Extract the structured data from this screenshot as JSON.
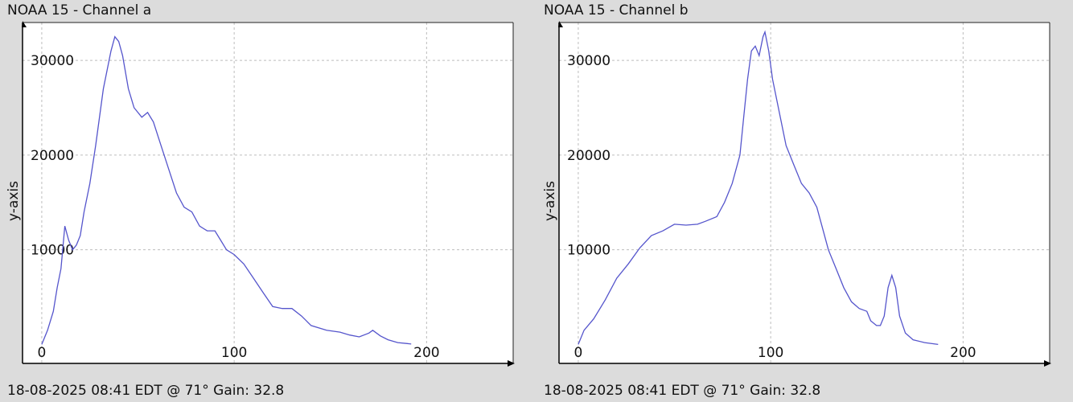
{
  "chart_data": [
    {
      "type": "line",
      "title": "NOAA 15 - Channel a",
      "footer": "18-08-2025 08:41 EDT @ 71° Gain: 32.8",
      "ylabel": "y-axis",
      "xlabel": "",
      "xlim": [
        -10,
        245
      ],
      "ylim": [
        -2000,
        34000
      ],
      "x_ticks": [
        0,
        100,
        200
      ],
      "y_ticks": [
        10000,
        20000,
        30000
      ],
      "grid": true,
      "series": [
        {
          "color": "#5555cc",
          "points": [
            [
              0,
              0
            ],
            [
              3,
              1500
            ],
            [
              6,
              3500
            ],
            [
              8,
              6000
            ],
            [
              10,
              8000
            ],
            [
              12,
              12500
            ],
            [
              14,
              11000
            ],
            [
              16,
              10000
            ],
            [
              18,
              10500
            ],
            [
              20,
              11500
            ],
            [
              22,
              14000
            ],
            [
              25,
              17000
            ],
            [
              28,
              21000
            ],
            [
              32,
              27000
            ],
            [
              36,
              31000
            ],
            [
              38,
              32500
            ],
            [
              40,
              32000
            ],
            [
              42,
              30500
            ],
            [
              45,
              27000
            ],
            [
              48,
              25000
            ],
            [
              52,
              24000
            ],
            [
              55,
              24500
            ],
            [
              58,
              23500
            ],
            [
              62,
              21000
            ],
            [
              66,
              18500
            ],
            [
              70,
              16000
            ],
            [
              74,
              14500
            ],
            [
              78,
              14000
            ],
            [
              82,
              12500
            ],
            [
              86,
              12000
            ],
            [
              90,
              12000
            ],
            [
              93,
              11000
            ],
            [
              96,
              10000
            ],
            [
              100,
              9500
            ],
            [
              105,
              8500
            ],
            [
              110,
              7000
            ],
            [
              115,
              5500
            ],
            [
              120,
              4000
            ],
            [
              125,
              3800
            ],
            [
              130,
              3800
            ],
            [
              135,
              3000
            ],
            [
              140,
              2000
            ],
            [
              148,
              1500
            ],
            [
              155,
              1300
            ],
            [
              160,
              1000
            ],
            [
              165,
              800
            ],
            [
              170,
              1200
            ],
            [
              172,
              1500
            ],
            [
              176,
              900
            ],
            [
              180,
              500
            ],
            [
              185,
              200
            ],
            [
              190,
              100
            ],
            [
              192,
              50
            ]
          ]
        }
      ]
    },
    {
      "type": "line",
      "title": "NOAA 15 - Channel b",
      "footer": "18-08-2025 08:41 EDT @ 71° Gain: 32.8",
      "ylabel": "y-axis",
      "xlabel": "",
      "xlim": [
        -10,
        245
      ],
      "ylim": [
        -2000,
        34000
      ],
      "x_ticks": [
        0,
        100,
        200
      ],
      "y_ticks": [
        10000,
        20000,
        30000
      ],
      "grid": true,
      "series": [
        {
          "color": "#5555cc",
          "points": [
            [
              0,
              0
            ],
            [
              3,
              1500
            ],
            [
              8,
              2700
            ],
            [
              14,
              4700
            ],
            [
              20,
              7000
            ],
            [
              26,
              8500
            ],
            [
              32,
              10200
            ],
            [
              38,
              11500
            ],
            [
              44,
              12000
            ],
            [
              50,
              12700
            ],
            [
              56,
              12600
            ],
            [
              62,
              12700
            ],
            [
              66,
              13000
            ],
            [
              72,
              13500
            ],
            [
              76,
              15000
            ],
            [
              80,
              17000
            ],
            [
              84,
              20000
            ],
            [
              86,
              24000
            ],
            [
              88,
              28000
            ],
            [
              90,
              31000
            ],
            [
              92,
              31500
            ],
            [
              94,
              30500
            ],
            [
              96,
              32500
            ],
            [
              97,
              33000
            ],
            [
              99,
              31000
            ],
            [
              101,
              28000
            ],
            [
              104,
              25000
            ],
            [
              108,
              21000
            ],
            [
              112,
              19000
            ],
            [
              116,
              17000
            ],
            [
              120,
              16000
            ],
            [
              124,
              14500
            ],
            [
              126,
              13000
            ],
            [
              130,
              10000
            ],
            [
              134,
              8000
            ],
            [
              138,
              6000
            ],
            [
              142,
              4500
            ],
            [
              146,
              3800
            ],
            [
              150,
              3500
            ],
            [
              152,
              2500
            ],
            [
              155,
              2000
            ],
            [
              157,
              2000
            ],
            [
              159,
              3000
            ],
            [
              161,
              6000
            ],
            [
              163,
              7300
            ],
            [
              165,
              6000
            ],
            [
              167,
              3000
            ],
            [
              170,
              1200
            ],
            [
              174,
              500
            ],
            [
              180,
              200
            ],
            [
              187,
              0
            ]
          ]
        }
      ]
    }
  ]
}
